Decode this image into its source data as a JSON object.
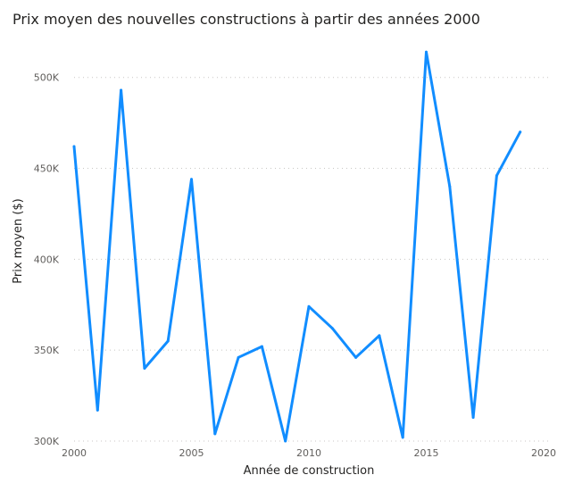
{
  "chart_data": {
    "type": "line",
    "title": "Prix moyen des nouvelles constructions à partir des années 2000",
    "xlabel": "Année de construction",
    "ylabel": "Prix moyen ($)",
    "xlim": [
      2000,
      2020
    ],
    "ylim": [
      300000,
      520000
    ],
    "x_ticks": [
      2000,
      2005,
      2010,
      2015,
      2020
    ],
    "y_ticks": [
      300000,
      350000,
      400000,
      450000,
      500000
    ],
    "y_tick_labels": [
      "300K",
      "350K",
      "400K",
      "450K",
      "500K"
    ],
    "grid": true,
    "series": [
      {
        "color": "#118DFF",
        "x": [
          2000,
          2001,
          2002,
          2003,
          2004,
          2005,
          2006,
          2007,
          2008,
          2009,
          2010,
          2011,
          2012,
          2013,
          2014,
          2015,
          2016,
          2017,
          2018,
          2019
        ],
        "values": [
          462000,
          317000,
          493000,
          340000,
          355000,
          444000,
          304000,
          346000,
          352000,
          300000,
          374000,
          362000,
          346000,
          358000,
          302000,
          514000,
          440000,
          313000,
          446000,
          470000
        ]
      }
    ]
  }
}
